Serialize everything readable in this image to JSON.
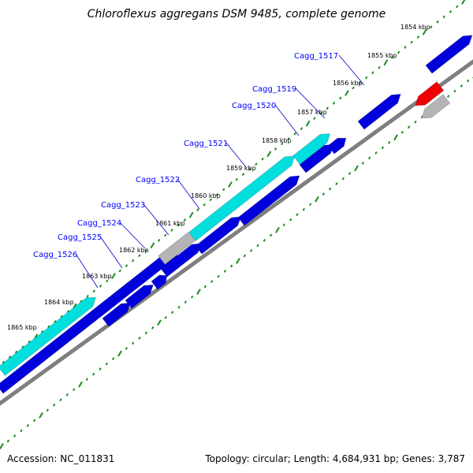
{
  "title": "Chloroflexus aggregans DSM 9485, complete genome",
  "accession": "Accession: NC_011831",
  "summary": "Topology: circular; Length: 4,684,931 bp; Genes: 3,787",
  "colors": {
    "backbone": "#7f7f7f",
    "tick": "#1a8c1a",
    "cds_blue": "#0000dd",
    "cds_cyan": "#00dede",
    "cds_gray": "#b4b4b4",
    "cds_red": "#ee0000",
    "label_line": "#0000cc",
    "label_text": "#0000ff"
  },
  "kbp_labels": [
    "1854 kbp",
    "1855 kbp",
    "1856 kbp",
    "1857 kbp",
    "1858 kbp",
    "1859 kbp",
    "1860 kbp",
    "1861 kbp",
    "1862 kbp",
    "1863 kbp",
    "1864 kbp",
    "1865 kbp"
  ],
  "gene_labels": [
    "Cagg_1517",
    "Cagg_1519",
    "Cagg_1520",
    "Cagg_1521",
    "Cagg_1522",
    "Cagg_1523",
    "Cagg_1524",
    "Cagg_1525",
    "Cagg_1526"
  ]
}
